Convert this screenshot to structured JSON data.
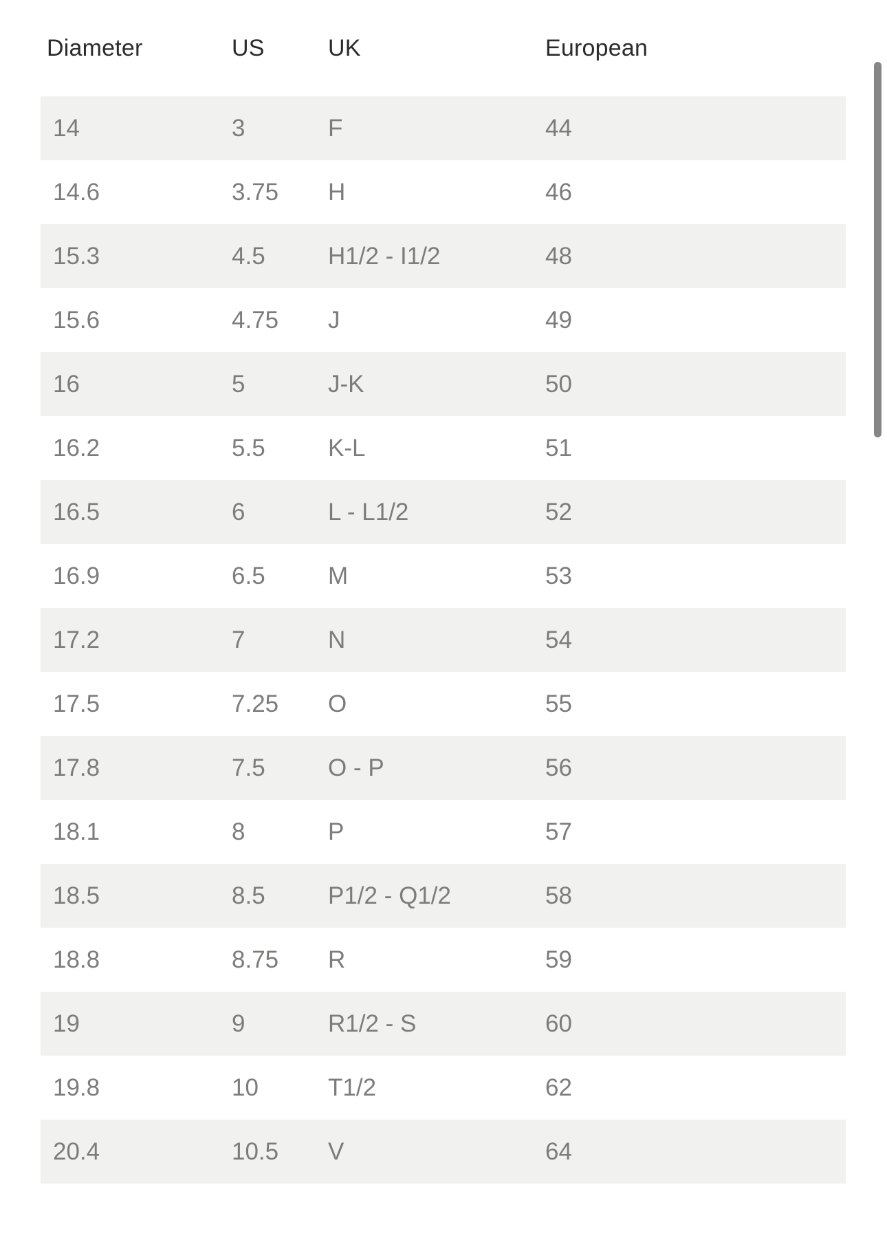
{
  "table": {
    "columns": [
      "Diameter",
      "US",
      "UK",
      "European"
    ],
    "rows": [
      [
        "14",
        "3",
        "F",
        "44"
      ],
      [
        "14.6",
        "3.75",
        "H",
        "46"
      ],
      [
        "15.3",
        "4.5",
        "H1/2 - I1/2",
        "48"
      ],
      [
        "15.6",
        "4.75",
        "J",
        "49"
      ],
      [
        "16",
        "5",
        "J-K",
        "50"
      ],
      [
        "16.2",
        "5.5",
        "K-L",
        "51"
      ],
      [
        "16.5",
        "6",
        "L - L1/2",
        "52"
      ],
      [
        "16.9",
        "6.5",
        "M",
        "53"
      ],
      [
        "17.2",
        "7",
        "N",
        "54"
      ],
      [
        "17.5",
        "7.25",
        "O",
        "55"
      ],
      [
        "17.8",
        "7.5",
        "O - P",
        "56"
      ],
      [
        "18.1",
        "8",
        "P",
        "57"
      ],
      [
        "18.5",
        "8.5",
        "P1/2 - Q1/2",
        "58"
      ],
      [
        "18.8",
        "8.75",
        "R",
        "59"
      ],
      [
        "19",
        "9",
        "R1/2 - S",
        "60"
      ],
      [
        "19.8",
        "10",
        "T1/2",
        "62"
      ],
      [
        "20.4",
        "10.5",
        "V",
        "64"
      ]
    ]
  },
  "colors": {
    "background": "#ffffff",
    "row_alt_bg": "#f1f1ef",
    "cell_text": "#7c7c7a",
    "header_text": "#2b2b2b",
    "scrollbar_thumb": "#868686"
  }
}
